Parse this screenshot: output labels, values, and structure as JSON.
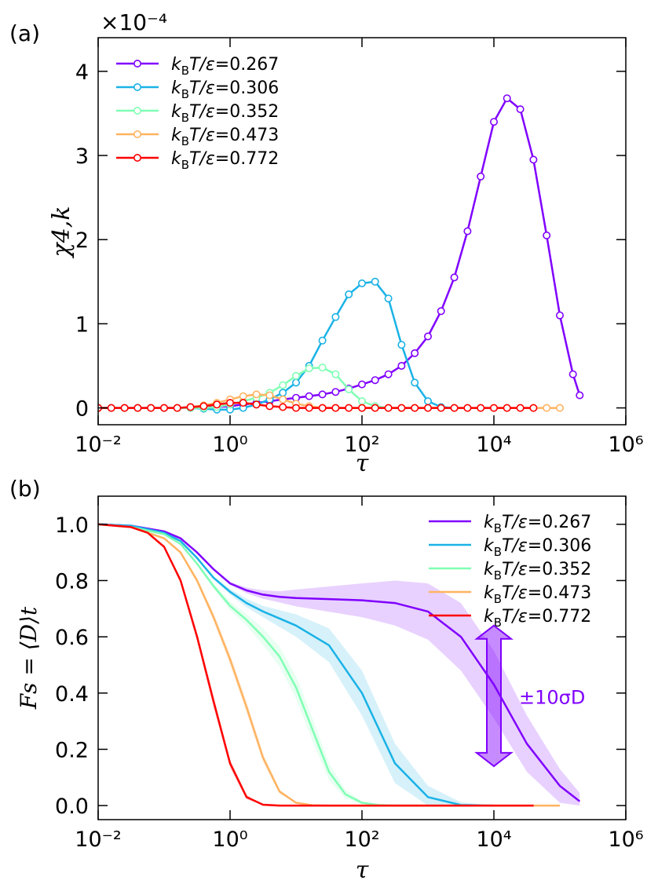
{
  "colors": {
    "t0267": "#8000ff",
    "t0306": "#1ab2e6",
    "t0352": "#80ffb4",
    "t0473": "#ffb360",
    "t0772": "#ff0000",
    "arrow": "#8000ff",
    "axis": "#000000"
  },
  "chart_data": [
    {
      "type": "line",
      "panel_label": "(a)",
      "multiplier": "×10⁻⁴",
      "xlabel": "τ",
      "ylabel": "χ4,k",
      "xscale": "log",
      "xlim": [
        0.01,
        1000000
      ],
      "ylim": [
        -0.2,
        4.4
      ],
      "xticks": [
        0.01,
        1,
        100,
        10000,
        1000000
      ],
      "xtick_labels": [
        "10⁻²",
        "10⁰",
        "10²",
        "10⁴",
        "10⁶"
      ],
      "yticks": [
        0,
        1,
        2,
        3,
        4
      ],
      "ytick_labels": [
        "0",
        "1",
        "2",
        "3",
        "4"
      ],
      "legend_position": "top-left",
      "series": [
        {
          "name": "kBT/ε=0.267",
          "legend_label": "0.267",
          "color_key": "t0267",
          "x": [
            0.01,
            0.0158,
            0.0251,
            0.0398,
            0.0631,
            0.1,
            0.158,
            0.251,
            0.398,
            0.631,
            1,
            1.58,
            2.51,
            3.98,
            6.31,
            10,
            15.8,
            25.1,
            39.8,
            63.1,
            100,
            158,
            251,
            398,
            631,
            1000,
            1580,
            2510,
            3980,
            6310,
            10000,
            15800,
            25100,
            39800,
            63100,
            100000,
            158000,
            200000
          ],
          "y": [
            0,
            0,
            0,
            0,
            0,
            0,
            0,
            0,
            0.005,
            0.01,
            0.02,
            0.04,
            0.06,
            0.08,
            0.1,
            0.12,
            0.14,
            0.16,
            0.19,
            0.23,
            0.28,
            0.33,
            0.4,
            0.5,
            0.65,
            0.85,
            1.15,
            1.55,
            2.1,
            2.75,
            3.4,
            3.68,
            3.55,
            2.95,
            2.05,
            1.1,
            0.4,
            0.15
          ]
        },
        {
          "name": "kBT/ε=0.306",
          "legend_label": "0.306",
          "color_key": "t0306",
          "x": [
            0.01,
            0.0158,
            0.0251,
            0.0398,
            0.0631,
            0.1,
            0.158,
            0.251,
            0.398,
            0.631,
            1,
            1.58,
            2.51,
            3.98,
            6.31,
            10,
            15.8,
            25.1,
            39.8,
            63.1,
            100,
            158,
            251,
            398,
            631,
            1000,
            1580,
            2510
          ],
          "y": [
            0,
            0,
            0,
            0,
            0,
            0,
            0,
            0,
            -0.01,
            -0.02,
            -0.02,
            0,
            0.04,
            0.1,
            0.18,
            0.3,
            0.5,
            0.8,
            1.08,
            1.35,
            1.48,
            1.5,
            1.3,
            0.75,
            0.3,
            0.08,
            0.01,
            0
          ]
        },
        {
          "name": "kBT/ε=0.352",
          "legend_label": "0.352",
          "color_key": "t0352",
          "x": [
            0.01,
            0.0158,
            0.0251,
            0.0398,
            0.0631,
            0.1,
            0.158,
            0.251,
            0.398,
            0.631,
            1,
            1.58,
            2.51,
            3.98,
            6.31,
            10,
            15.8,
            25.1,
            39.8,
            63.1,
            100,
            158,
            251,
            398
          ],
          "y": [
            0,
            0,
            0,
            0,
            0,
            0,
            0,
            0,
            0,
            0.01,
            0.04,
            0.08,
            0.12,
            0.18,
            0.27,
            0.38,
            0.47,
            0.48,
            0.4,
            0.22,
            0.08,
            0.02,
            0,
            0
          ]
        },
        {
          "name": "kBT/ε=0.473",
          "legend_label": "0.473",
          "color_key": "t0473",
          "x": [
            0.01,
            0.0158,
            0.0251,
            0.0398,
            0.0631,
            0.1,
            0.158,
            0.251,
            0.398,
            0.631,
            1,
            1.58,
            2.51,
            3.98,
            6.31,
            10,
            15.8,
            25.1,
            39.8,
            63.1,
            100,
            158,
            251,
            398,
            631,
            1000,
            1580,
            2510,
            3980,
            6310,
            10000,
            15800,
            25100,
            39800,
            63100,
            100000
          ],
          "y": [
            0,
            0,
            0,
            0,
            0,
            0,
            0,
            0.01,
            0.03,
            0.06,
            0.1,
            0.14,
            0.16,
            0.15,
            0.1,
            0.05,
            0.02,
            0,
            0,
            0,
            0,
            0,
            0,
            0,
            0,
            0,
            0,
            0,
            0,
            0,
            0,
            0,
            0,
            0,
            0,
            0
          ]
        },
        {
          "name": "kBT/ε=0.772",
          "legend_label": "0.772",
          "color_key": "t0772",
          "x": [
            0.01,
            0.0158,
            0.0251,
            0.0398,
            0.0631,
            0.1,
            0.158,
            0.251,
            0.398,
            0.631,
            1,
            1.58,
            2.51,
            3.98,
            6.31,
            10,
            15.8,
            25.1,
            39.8,
            63.1,
            100,
            158,
            251,
            398,
            631,
            1000,
            1580,
            2510,
            3980,
            6310,
            10000,
            15800,
            25100,
            39800
          ],
          "y": [
            0,
            0,
            0,
            0,
            0,
            0,
            0,
            0.01,
            0.02,
            0.04,
            0.06,
            0.06,
            0.04,
            0.02,
            0.01,
            0,
            0,
            0,
            0,
            0,
            0,
            0,
            0,
            0,
            0,
            0,
            0,
            0,
            0,
            0,
            0,
            0,
            0,
            0
          ]
        }
      ]
    },
    {
      "type": "line",
      "panel_label": "(b)",
      "xlabel": "τ",
      "ylabel": "Fs = ⟨D⟩t",
      "xscale": "log",
      "xlim": [
        0.01,
        1000000
      ],
      "ylim": [
        -0.05,
        1.1
      ],
      "xticks": [
        0.01,
        1,
        100,
        10000,
        1000000
      ],
      "xtick_labels": [
        "10⁻²",
        "10⁰",
        "10²",
        "10⁴",
        "10⁶"
      ],
      "yticks": [
        0.0,
        0.2,
        0.4,
        0.6,
        0.8,
        1.0
      ],
      "ytick_labels": [
        "0.0",
        "0.2",
        "0.4",
        "0.6",
        "0.8",
        "1.0"
      ],
      "legend_position": "top-right",
      "annotation": {
        "text": "±10σD",
        "x": 10000,
        "y_from": 0.14,
        "y_to": 0.64
      },
      "series": [
        {
          "name": "kBT/ε=0.267",
          "legend_label": "0.267",
          "color_key": "t0267",
          "x": [
            0.01,
            0.0316,
            0.1,
            0.178,
            0.316,
            0.562,
            1,
            1.78,
            3.16,
            5.62,
            10,
            31.6,
            100,
            316,
            1000,
            3160,
            10000,
            31600,
            100000,
            200000
          ],
          "y": [
            1.0,
            0.995,
            0.975,
            0.95,
            0.9,
            0.84,
            0.79,
            0.765,
            0.75,
            0.742,
            0.738,
            0.734,
            0.73,
            0.72,
            0.69,
            0.6,
            0.43,
            0.22,
            0.07,
            0.015
          ],
          "band": [
            0.0,
            0.0,
            0.0,
            0.0,
            0.0,
            0.0,
            0.005,
            0.01,
            0.015,
            0.02,
            0.03,
            0.045,
            0.06,
            0.08,
            0.1,
            0.12,
            0.12,
            0.1,
            0.06,
            0.03
          ]
        },
        {
          "name": "kBT/ε=0.306",
          "legend_label": "0.306",
          "color_key": "t0306",
          "x": [
            0.01,
            0.0316,
            0.1,
            0.178,
            0.316,
            0.562,
            1,
            1.78,
            3.16,
            5.62,
            10,
            31.6,
            100,
            316,
            1000,
            3160,
            10000
          ],
          "y": [
            1.0,
            0.995,
            0.97,
            0.94,
            0.88,
            0.81,
            0.76,
            0.72,
            0.69,
            0.665,
            0.64,
            0.57,
            0.4,
            0.15,
            0.03,
            0.002,
            0.0
          ],
          "band": [
            0.0,
            0.0,
            0.0,
            0.0,
            0.0,
            0.005,
            0.01,
            0.015,
            0.02,
            0.03,
            0.04,
            0.06,
            0.08,
            0.07,
            0.04,
            0.01,
            0.0
          ]
        },
        {
          "name": "kBT/ε=0.352",
          "legend_label": "0.352",
          "color_key": "t0352",
          "x": [
            0.01,
            0.0316,
            0.1,
            0.178,
            0.316,
            0.562,
            1,
            1.78,
            3.16,
            5.62,
            10,
            17.8,
            31.6,
            56.2,
            100,
            178,
            316,
            1000
          ],
          "y": [
            1.0,
            0.99,
            0.965,
            0.93,
            0.86,
            0.78,
            0.71,
            0.66,
            0.6,
            0.53,
            0.42,
            0.27,
            0.12,
            0.04,
            0.01,
            0.002,
            0.0,
            0.0
          ],
          "band": [
            0.0,
            0.0,
            0.0,
            0.0,
            0.005,
            0.01,
            0.015,
            0.02,
            0.03,
            0.035,
            0.04,
            0.04,
            0.03,
            0.015,
            0.005,
            0.0,
            0.0,
            0.0
          ]
        },
        {
          "name": "kBT/ε=0.473",
          "legend_label": "0.473",
          "color_key": "t0473",
          "x": [
            0.01,
            0.0316,
            0.1,
            0.178,
            0.316,
            0.562,
            1,
            1.78,
            3.16,
            5.62,
            10,
            17.8,
            31.6,
            100,
            1000,
            10000,
            100000
          ],
          "y": [
            1.0,
            0.99,
            0.95,
            0.9,
            0.8,
            0.67,
            0.52,
            0.35,
            0.17,
            0.05,
            0.01,
            0.001,
            0.0,
            0.0,
            0.0,
            0.0,
            0.0
          ],
          "band": [
            0.0,
            0.0,
            0.0,
            0.005,
            0.01,
            0.015,
            0.02,
            0.02,
            0.015,
            0.008,
            0.0,
            0.0,
            0.0,
            0.0,
            0.0,
            0.0,
            0.0
          ]
        },
        {
          "name": "kBT/ε=0.772",
          "legend_label": "0.772",
          "color_key": "t0772",
          "x": [
            0.01,
            0.0316,
            0.0562,
            0.1,
            0.178,
            0.316,
            0.562,
            1,
            1.78,
            3.16,
            5.62,
            10,
            100,
            1000,
            10000,
            40000
          ],
          "y": [
            1.0,
            0.99,
            0.97,
            0.92,
            0.8,
            0.6,
            0.37,
            0.15,
            0.03,
            0.003,
            0.0,
            0.0,
            0.0,
            0.0,
            0.0,
            0.0
          ],
          "band": [
            0.0,
            0.0,
            0.0,
            0.005,
            0.01,
            0.015,
            0.02,
            0.015,
            0.008,
            0.0,
            0.0,
            0.0,
            0.0,
            0.0,
            0.0,
            0.0
          ]
        }
      ]
    }
  ]
}
